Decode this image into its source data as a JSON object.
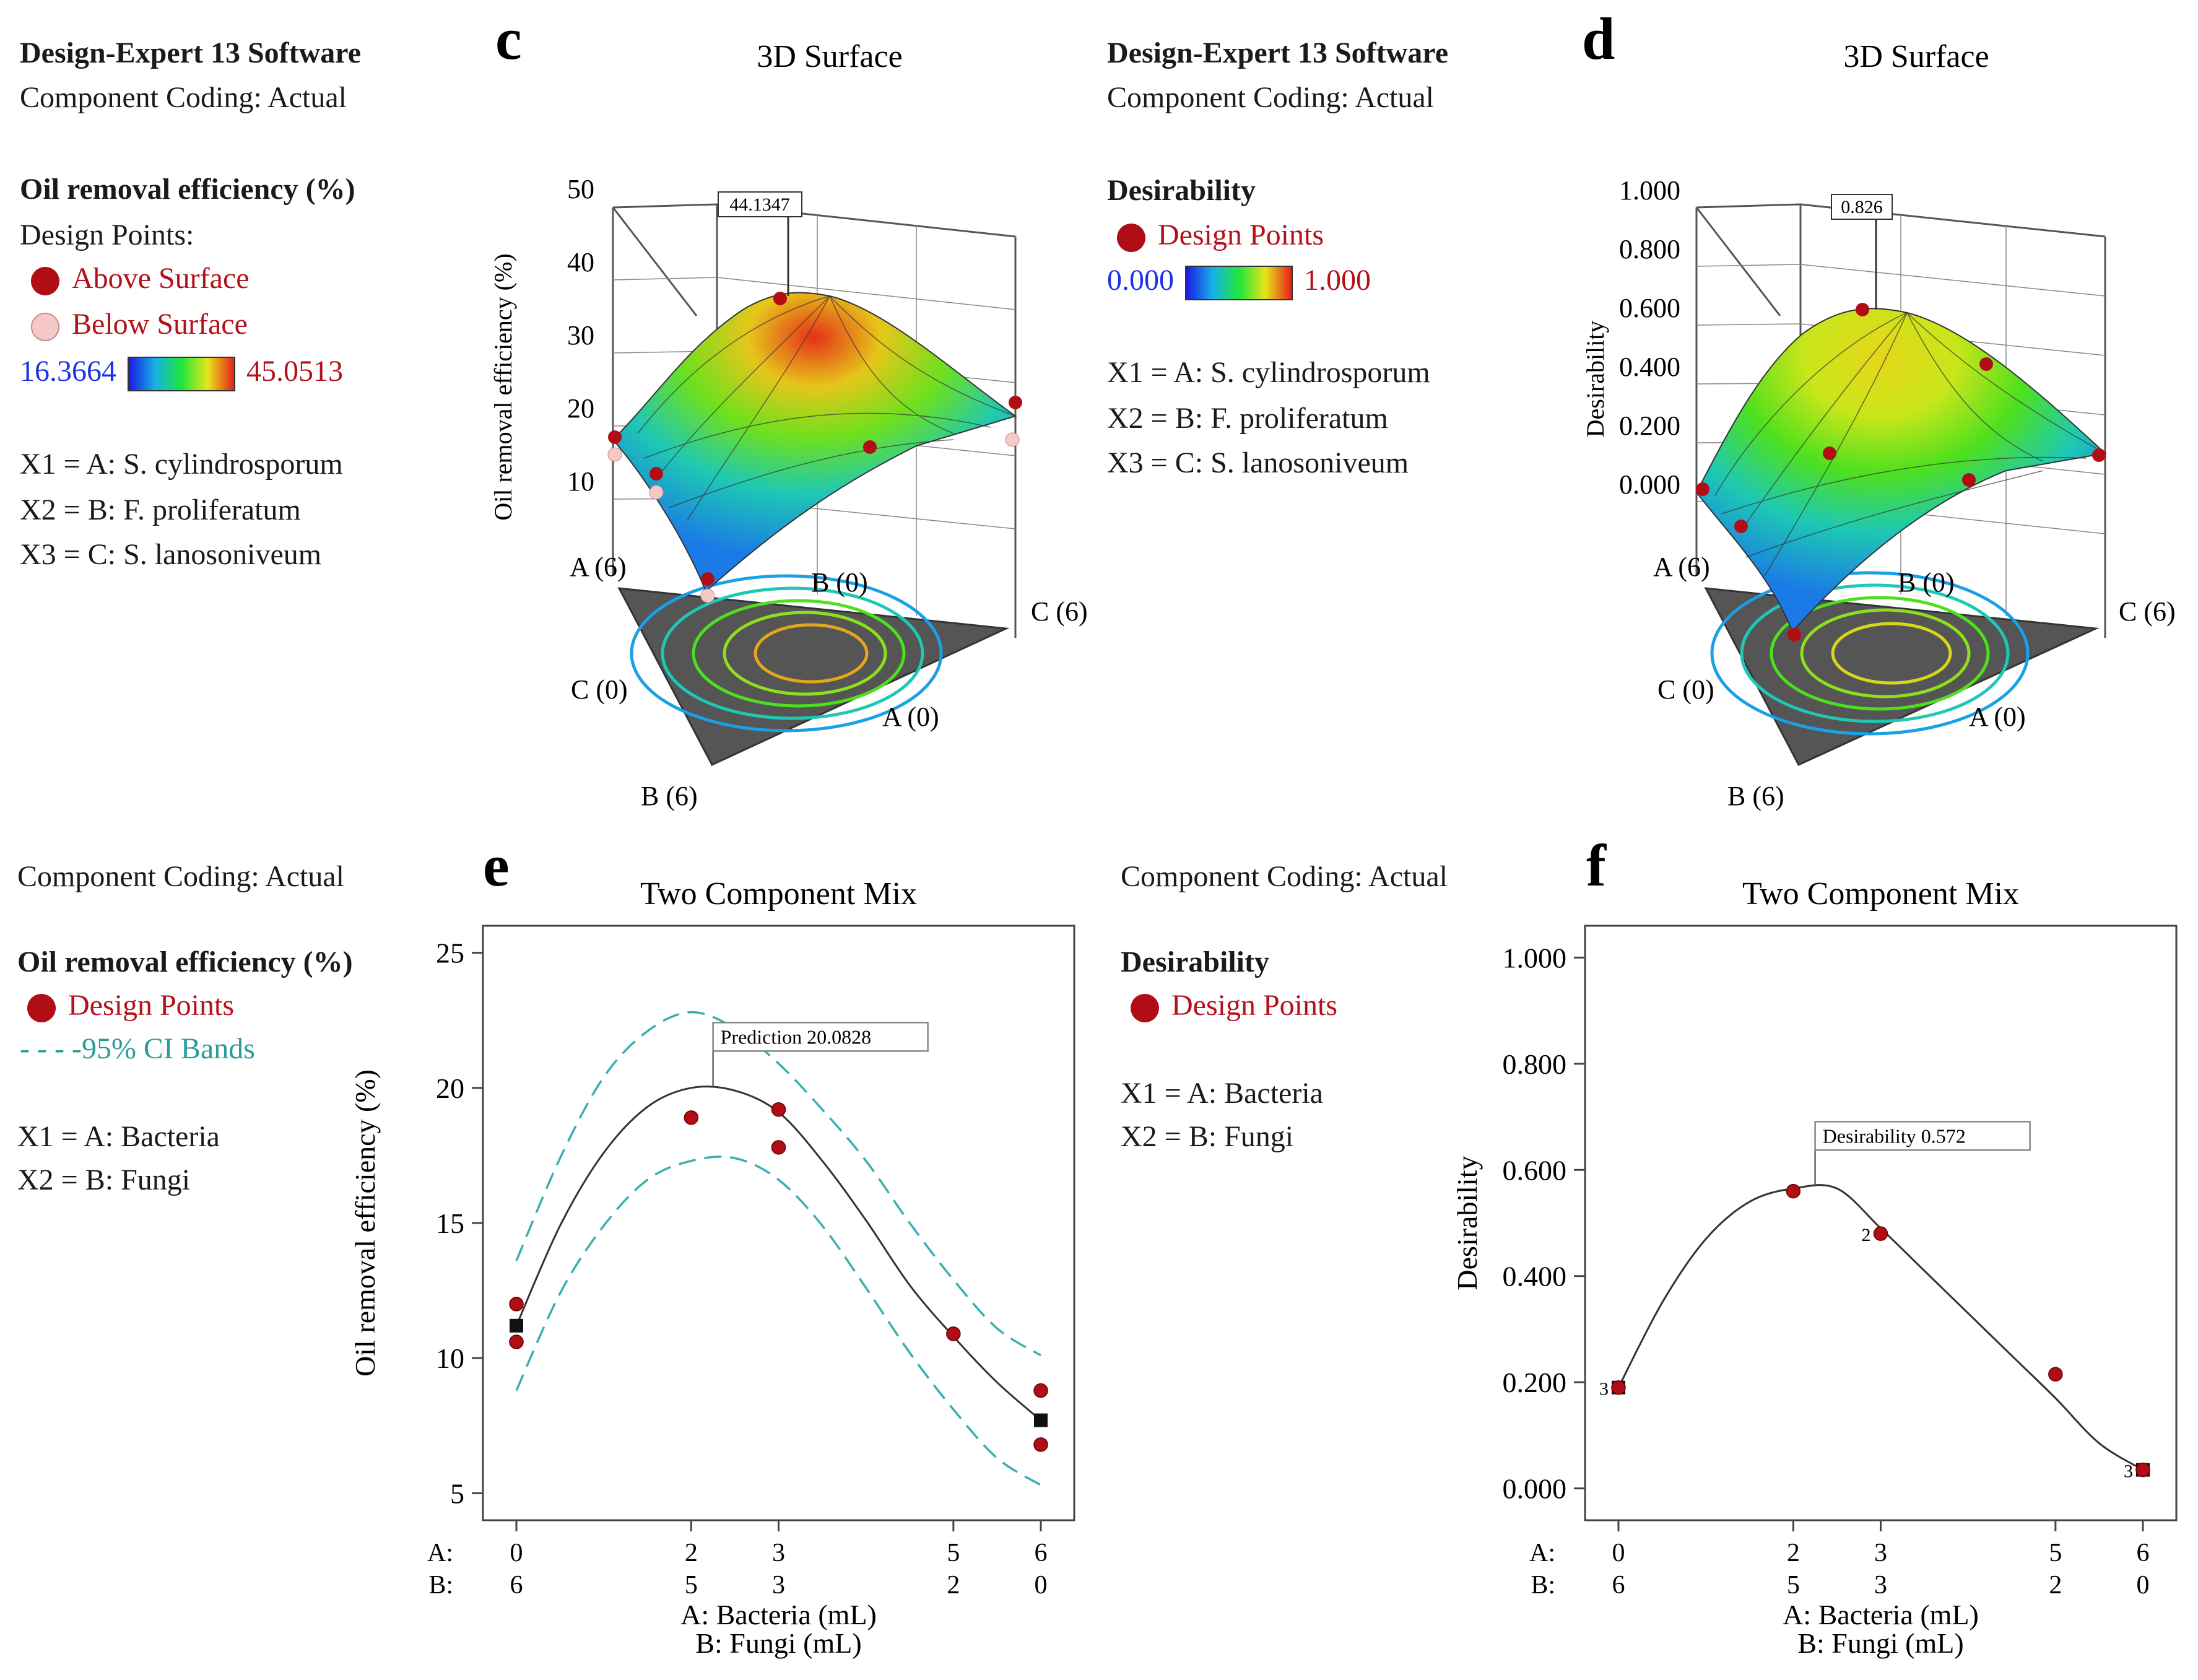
{
  "panel_c": {
    "letter": "c",
    "software": "Design-Expert 13 Software",
    "coding": "Component Coding: Actual",
    "response": "Oil removal efficiency (%)",
    "design_points_label": "Design Points:",
    "above_label": "Above Surface",
    "below_label": "Below Surface",
    "scale_min": "16.3664",
    "scale_max": "45.0513",
    "x1": "X1 = A: S. cylindrosporum",
    "x2": "X2 = B: F. proliferatum",
    "x3": "X3 = C: S. lanosoniveum",
    "title": "3D Surface",
    "zlabel": "Oil removal efficiency (%)",
    "zticks": [
      "50",
      "40",
      "30",
      "20",
      "10"
    ],
    "flag": "44.1347",
    "vertex_a6": "A (6)",
    "vertex_b0": "B (0)",
    "vertex_c6": "C (6)",
    "vertex_c0": "C (0)",
    "vertex_a0": "A (0)",
    "vertex_b6": "B (6)",
    "colors": {
      "above": "#b00d15",
      "below": "#f6c9c9"
    }
  },
  "panel_d": {
    "letter": "d",
    "software": "Design-Expert 13 Software",
    "coding": "Component Coding: Actual",
    "response": "Desirability",
    "design_points_label": "Design Points",
    "scale_min": "0.000",
    "scale_max": "1.000",
    "x1": "X1 = A: S. cylindrosporum",
    "x2": "X2 = B: F. proliferatum",
    "x3": "X3 = C: S. lanosoniveum",
    "title": "3D Surface",
    "zlabel": "Desirability",
    "zticks": [
      "1.000",
      "0.800",
      "0.600",
      "0.400",
      "0.200",
      "0.000"
    ],
    "flag": "0.826",
    "vertex_a6": "A (6)",
    "vertex_b0": "B (0)",
    "vertex_c6": "C (6)",
    "vertex_c0": "C (0)",
    "vertex_a0": "A (0)",
    "vertex_b6": "B (6)"
  },
  "panel_e": {
    "letter": "e",
    "coding": "Component Coding: Actual",
    "response": "Oil removal efficiency (%)",
    "design_points_label": "Design Points",
    "ci_label": "- - - -95% CI Bands",
    "x1": "X1 = A: Bacteria",
    "x2": "X2 = B: Fungi"
  },
  "panel_f": {
    "letter": "f",
    "coding": "Component Coding: Actual",
    "response": "Desirability",
    "design_points_label": "Design Points",
    "x1": "X1 = A: Bacteria",
    "x2": "X2 = B: Fungi"
  },
  "chart_data": [
    {
      "id": "e",
      "type": "line",
      "title": "Two Component Mix",
      "xlabel": "A: Bacteria (mL)",
      "xlabel2": "B: Fungi (mL)",
      "ylabel": "Oil removal efficiency (%)",
      "xlim": [
        0,
        6
      ],
      "ylim": [
        4,
        26
      ],
      "yticks": [
        5,
        10,
        15,
        20,
        25
      ],
      "xticks": [
        0,
        2,
        3,
        5,
        6
      ],
      "xtick_labels_a": [
        "0",
        "2",
        "3",
        "5",
        "6"
      ],
      "xtick_labels_b": [
        "6",
        "5",
        "3",
        "2",
        "0"
      ],
      "row_prefix_a": "A:",
      "row_prefix_b": "B:",
      "fit": {
        "x": [
          0,
          0.5,
          1,
          1.5,
          2,
          2.5,
          3,
          3.5,
          4,
          4.5,
          5,
          5.5,
          6
        ],
        "y": [
          11.2,
          14.9,
          17.6,
          19.3,
          20.0,
          19.9,
          19.1,
          17.3,
          15.1,
          12.7,
          10.8,
          9.1,
          7.7
        ]
      },
      "ci_upper": {
        "x": [
          0,
          0.5,
          1,
          1.5,
          2,
          2.5,
          3,
          3.5,
          4,
          4.5,
          5,
          5.5,
          6
        ],
        "y": [
          13.6,
          17.4,
          20.4,
          22.1,
          22.8,
          22.2,
          20.9,
          19.2,
          17.3,
          15.0,
          12.9,
          11.1,
          10.1
        ]
      },
      "ci_lower": {
        "x": [
          0,
          0.5,
          1,
          1.5,
          2,
          2.5,
          3,
          3.5,
          4,
          4.5,
          5,
          5.5,
          6
        ],
        "y": [
          8.8,
          12.4,
          14.9,
          16.6,
          17.3,
          17.4,
          16.6,
          14.9,
          12.6,
          10.2,
          8.1,
          6.3,
          5.3
        ]
      },
      "points": [
        {
          "x": 0,
          "y": 12.0
        },
        {
          "x": 0,
          "y": 10.6
        },
        {
          "x": 2,
          "y": 18.9
        },
        {
          "x": 3,
          "y": 19.2
        },
        {
          "x": 3,
          "y": 17.8
        },
        {
          "x": 5,
          "y": 10.9
        },
        {
          "x": 6,
          "y": 8.8
        },
        {
          "x": 6,
          "y": 6.8
        }
      ],
      "squares": [
        {
          "x": 0,
          "y": 11.2
        },
        {
          "x": 6,
          "y": 7.7
        }
      ],
      "flag": {
        "x": 2.25,
        "y": 20.08,
        "label": "Prediction  20.0828"
      },
      "colors": {
        "fit": "#333333",
        "ci": "#3aaeb0",
        "point": "#b00d15"
      }
    },
    {
      "id": "f",
      "type": "line",
      "title": "Two Component Mix",
      "xlabel": "A: Bacteria (mL)",
      "xlabel2": "B: Fungi (mL)",
      "ylabel": "Desirability",
      "xlim": [
        0,
        6
      ],
      "ylim": [
        -0.06,
        1.06
      ],
      "ytick_values": [
        0,
        0.2,
        0.4,
        0.6,
        0.8,
        1.0
      ],
      "yticks": [
        "0.000",
        "0.200",
        "0.400",
        "0.600",
        "0.800",
        "1.000"
      ],
      "xticks": [
        0,
        2,
        3,
        5,
        6
      ],
      "xtick_labels_a": [
        "0",
        "2",
        "3",
        "5",
        "6"
      ],
      "xtick_labels_b": [
        "6",
        "5",
        "3",
        "2",
        "0"
      ],
      "row_prefix_a": "A:",
      "row_prefix_b": "B:",
      "fit": {
        "x": [
          0,
          0.5,
          1,
          1.5,
          2,
          2.5,
          3,
          3.5,
          4,
          4.5,
          5,
          5.5,
          6
        ],
        "y": [
          0.19,
          0.35,
          0.47,
          0.54,
          0.565,
          0.565,
          0.49,
          0.41,
          0.33,
          0.25,
          0.17,
          0.085,
          0.035
        ]
      },
      "points": [
        {
          "x": 0,
          "y": 0.19
        },
        {
          "x": 2,
          "y": 0.56
        },
        {
          "x": 3,
          "y": 0.48
        },
        {
          "x": 5,
          "y": 0.215
        },
        {
          "x": 6,
          "y": 0.035
        }
      ],
      "squares": [
        {
          "x": 0,
          "y": 0.19
        },
        {
          "x": 6,
          "y": 0.035
        }
      ],
      "point_counts": [
        {
          "x": 0,
          "y": 0.19,
          "label": "3"
        },
        {
          "x": 3,
          "y": 0.48,
          "label": "2"
        },
        {
          "x": 6,
          "y": 0.035,
          "label": "3"
        }
      ],
      "flag": {
        "x": 2.25,
        "y": 0.572,
        "label": "Desirability  0.572"
      },
      "colors": {
        "fit": "#333333",
        "point": "#b00d15"
      }
    }
  ]
}
